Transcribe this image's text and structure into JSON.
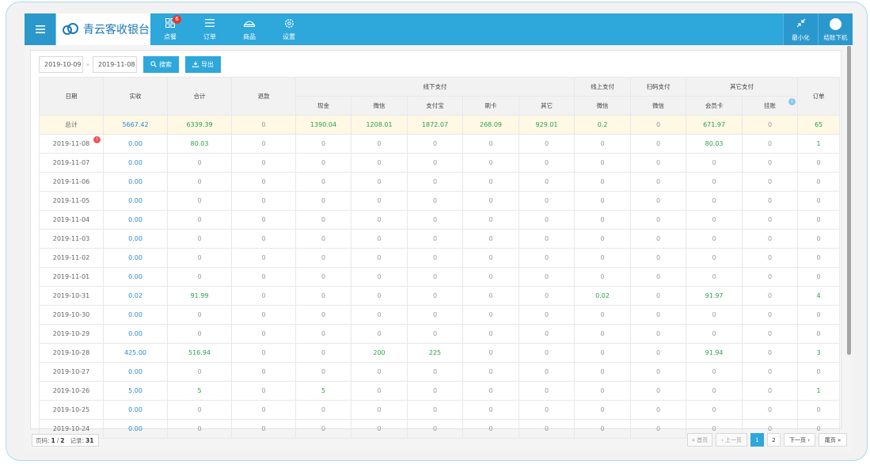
{
  "app": {
    "title": "青云客收银台",
    "nav": [
      {
        "label": "点餐",
        "icon": "grid-icon",
        "badge": "6"
      },
      {
        "label": "订单",
        "icon": "list-icon"
      },
      {
        "label": "商品",
        "icon": "product-icon"
      },
      {
        "label": "设置",
        "icon": "gear-icon"
      }
    ],
    "minimize_label": "最小化",
    "logout_label": "结账下机"
  },
  "filters": {
    "start_date": "2019-10-09",
    "end_date": "2019-11-08",
    "search_label": "搜索",
    "export_label": "导出"
  },
  "table": {
    "headers": {
      "date": "日期",
      "received": "实收",
      "total": "合计",
      "refund": "退款",
      "offline_pay": "线下支付",
      "online_pay": "线上支付",
      "scan_pay": "扫码支付",
      "other_pay": "其它支付",
      "orders": "订单",
      "cash": "现金",
      "wechat": "微信",
      "alipay": "支付宝",
      "card": "刷卡",
      "other": "其它",
      "online_wechat": "微信",
      "scan_wechat": "微信",
      "member_card": "会员卡",
      "credit": "挂账"
    },
    "summary": [
      "总计",
      "5667.42",
      "6339.39",
      "0",
      "1390.04",
      "1208.01",
      "1872.07",
      "268.09",
      "929.01",
      "0.2",
      "0",
      "671.97",
      "0",
      "65"
    ],
    "rows": [
      [
        "2019-11-08",
        "0.00",
        "80.03",
        "0",
        "0",
        "0",
        "0",
        "0",
        "0",
        "0",
        "0",
        "80.03",
        "0",
        "1"
      ],
      [
        "2019-11-07",
        "0.00",
        "0",
        "0",
        "0",
        "0",
        "0",
        "0",
        "0",
        "0",
        "0",
        "0",
        "0",
        "0"
      ],
      [
        "2019-11-06",
        "0.00",
        "0",
        "0",
        "0",
        "0",
        "0",
        "0",
        "0",
        "0",
        "0",
        "0",
        "0",
        "0"
      ],
      [
        "2019-11-05",
        "0.00",
        "0",
        "0",
        "0",
        "0",
        "0",
        "0",
        "0",
        "0",
        "0",
        "0",
        "0",
        "0"
      ],
      [
        "2019-11-04",
        "0.00",
        "0",
        "0",
        "0",
        "0",
        "0",
        "0",
        "0",
        "0",
        "0",
        "0",
        "0",
        "0"
      ],
      [
        "2019-11-03",
        "0.00",
        "0",
        "0",
        "0",
        "0",
        "0",
        "0",
        "0",
        "0",
        "0",
        "0",
        "0",
        "0"
      ],
      [
        "2019-11-02",
        "0.00",
        "0",
        "0",
        "0",
        "0",
        "0",
        "0",
        "0",
        "0",
        "0",
        "0",
        "0",
        "0"
      ],
      [
        "2019-11-01",
        "0.00",
        "0",
        "0",
        "0",
        "0",
        "0",
        "0",
        "0",
        "0",
        "0",
        "0",
        "0",
        "0"
      ],
      [
        "2019-10-31",
        "0.02",
        "91.99",
        "0",
        "0",
        "0",
        "0",
        "0",
        "0",
        "0.02",
        "0",
        "91.97",
        "0",
        "4"
      ],
      [
        "2019-10-30",
        "0.00",
        "0",
        "0",
        "0",
        "0",
        "0",
        "0",
        "0",
        "0",
        "0",
        "0",
        "0",
        "0"
      ],
      [
        "2019-10-29",
        "0.00",
        "0",
        "0",
        "0",
        "0",
        "0",
        "0",
        "0",
        "0",
        "0",
        "0",
        "0",
        "0"
      ],
      [
        "2019-10-28",
        "425.00",
        "516.94",
        "0",
        "0",
        "200",
        "225",
        "0",
        "0",
        "0",
        "0",
        "91.94",
        "0",
        "3"
      ],
      [
        "2019-10-27",
        "0.00",
        "0",
        "0",
        "0",
        "0",
        "0",
        "0",
        "0",
        "0",
        "0",
        "0",
        "0",
        "0"
      ],
      [
        "2019-10-26",
        "5.00",
        "5",
        "0",
        "5",
        "0",
        "0",
        "0",
        "0",
        "0",
        "0",
        "0",
        "0",
        "1"
      ],
      [
        "2019-10-25",
        "0.00",
        "0",
        "0",
        "0",
        "0",
        "0",
        "0",
        "0",
        "0",
        "0",
        "0",
        "0",
        "0"
      ],
      [
        "2019-10-24",
        "0.00",
        "0",
        "0",
        "0",
        "0",
        "0",
        "0",
        "0",
        "0",
        "0",
        "0",
        "0",
        "0"
      ]
    ]
  },
  "pagination": {
    "page_label": "页码:",
    "current": "1",
    "total": "2",
    "records_label": "记录:",
    "records": "31",
    "first": "« 首页",
    "prev": "‹ 上一页",
    "pages": [
      "1",
      "2"
    ],
    "next": "下一页 ›",
    "last": "尾页 »"
  },
  "colors": {
    "accent": "#2ea7db",
    "positive": "#2aa24a",
    "link": "#2c8ad6",
    "summary_bg": "#fef8e5",
    "alert": "#e55555"
  }
}
